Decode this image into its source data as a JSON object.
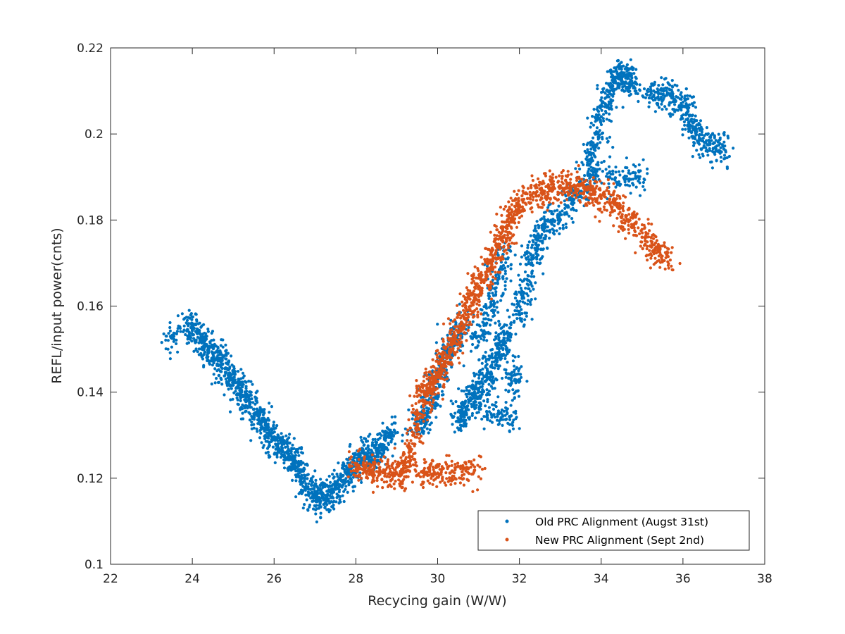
{
  "chart_data": {
    "type": "scatter",
    "xlabel": "Recycing gain (W/W)",
    "ylabel": "REFL/input power(cnts)",
    "xlim": [
      22,
      38
    ],
    "ylim": [
      0.1,
      0.22
    ],
    "x_ticks": [
      "22",
      "24",
      "26",
      "28",
      "30",
      "32",
      "34",
      "36",
      "38"
    ],
    "y_ticks": [
      "0.1",
      "0.12",
      "0.14",
      "0.16",
      "0.18",
      "0.2",
      "0.22"
    ],
    "grid": false,
    "legend_position": "bottom-right",
    "series": [
      {
        "name": "Old PRC Alignment (Augst 31st)",
        "color": "#0072BD",
        "points": [
          [
            23.5,
            0.1525
          ],
          [
            23.9,
            0.1555
          ],
          [
            24.0,
            0.1545
          ],
          [
            24.1,
            0.154
          ],
          [
            24.2,
            0.152
          ],
          [
            24.3,
            0.151
          ],
          [
            24.4,
            0.15
          ],
          [
            24.5,
            0.149
          ],
          [
            24.6,
            0.148
          ],
          [
            24.7,
            0.147
          ],
          [
            24.8,
            0.1455
          ],
          [
            24.9,
            0.144
          ],
          [
            25.0,
            0.1425
          ],
          [
            25.1,
            0.141
          ],
          [
            25.2,
            0.14
          ],
          [
            25.3,
            0.139
          ],
          [
            25.4,
            0.1375
          ],
          [
            25.5,
            0.136
          ],
          [
            25.6,
            0.1345
          ],
          [
            25.7,
            0.133
          ],
          [
            25.8,
            0.1315
          ],
          [
            25.9,
            0.13
          ],
          [
            26.0,
            0.129
          ],
          [
            26.1,
            0.128
          ],
          [
            26.2,
            0.127
          ],
          [
            26.3,
            0.126
          ],
          [
            26.4,
            0.125
          ],
          [
            26.5,
            0.1235
          ],
          [
            26.6,
            0.122
          ],
          [
            26.7,
            0.12
          ],
          [
            26.8,
            0.118
          ],
          [
            26.9,
            0.1165
          ],
          [
            27.0,
            0.116
          ],
          [
            27.1,
            0.1155
          ],
          [
            27.2,
            0.1155
          ],
          [
            27.3,
            0.116
          ],
          [
            27.4,
            0.1165
          ],
          [
            27.5,
            0.1175
          ],
          [
            27.6,
            0.1185
          ],
          [
            27.7,
            0.1195
          ],
          [
            27.8,
            0.121
          ],
          [
            27.9,
            0.1225
          ],
          [
            28.0,
            0.1235
          ],
          [
            28.1,
            0.124
          ],
          [
            28.2,
            0.1245
          ],
          [
            28.3,
            0.125
          ],
          [
            28.4,
            0.1255
          ],
          [
            28.5,
            0.1265
          ],
          [
            28.6,
            0.1275
          ],
          [
            28.7,
            0.129
          ],
          [
            28.8,
            0.1305
          ],
          [
            29.5,
            0.132
          ],
          [
            29.6,
            0.133
          ],
          [
            29.7,
            0.135
          ],
          [
            29.8,
            0.1375
          ],
          [
            29.9,
            0.14
          ],
          [
            30.0,
            0.143
          ],
          [
            30.1,
            0.146
          ],
          [
            30.2,
            0.148
          ],
          [
            30.3,
            0.15
          ],
          [
            30.4,
            0.152
          ],
          [
            30.5,
            0.154
          ],
          [
            30.6,
            0.156
          ],
          [
            30.5,
            0.134
          ],
          [
            30.6,
            0.135
          ],
          [
            30.7,
            0.1365
          ],
          [
            30.8,
            0.138
          ],
          [
            30.9,
            0.1395
          ],
          [
            31.0,
            0.1405
          ],
          [
            31.1,
            0.142
          ],
          [
            31.2,
            0.144
          ],
          [
            31.3,
            0.146
          ],
          [
            31.4,
            0.148
          ],
          [
            31.5,
            0.15
          ],
          [
            31.6,
            0.152
          ],
          [
            31.7,
            0.154
          ],
          [
            31.8,
            0.142
          ],
          [
            31.9,
            0.144
          ],
          [
            31.2,
            0.1355
          ],
          [
            31.5,
            0.135
          ],
          [
            31.8,
            0.1345
          ],
          [
            31.0,
            0.153
          ],
          [
            31.2,
            0.156
          ],
          [
            31.3,
            0.16
          ],
          [
            31.4,
            0.164
          ],
          [
            31.5,
            0.168
          ],
          [
            31.6,
            0.172
          ],
          [
            32.0,
            0.158
          ],
          [
            32.1,
            0.162
          ],
          [
            32.2,
            0.166
          ],
          [
            32.3,
            0.17
          ],
          [
            32.4,
            0.173
          ],
          [
            32.5,
            0.176
          ],
          [
            32.6,
            0.178
          ],
          [
            32.8,
            0.179
          ],
          [
            33.0,
            0.18
          ],
          [
            33.2,
            0.183
          ],
          [
            33.4,
            0.186
          ],
          [
            33.6,
            0.188
          ],
          [
            33.7,
            0.194
          ],
          [
            33.8,
            0.197
          ],
          [
            33.9,
            0.2
          ],
          [
            34.0,
            0.204
          ],
          [
            34.1,
            0.207
          ],
          [
            34.2,
            0.21
          ],
          [
            34.3,
            0.212
          ],
          [
            34.4,
            0.213
          ],
          [
            34.5,
            0.214
          ],
          [
            34.6,
            0.213
          ],
          [
            34.7,
            0.212
          ],
          [
            34.8,
            0.211
          ],
          [
            33.8,
            0.1905
          ],
          [
            34.2,
            0.19
          ],
          [
            34.6,
            0.1895
          ],
          [
            34.9,
            0.19
          ],
          [
            35.2,
            0.209
          ],
          [
            35.4,
            0.2095
          ],
          [
            35.6,
            0.209
          ],
          [
            35.8,
            0.208
          ],
          [
            36.0,
            0.2065
          ],
          [
            36.1,
            0.205
          ],
          [
            36.2,
            0.203
          ],
          [
            36.3,
            0.201
          ],
          [
            36.4,
            0.199
          ],
          [
            36.6,
            0.1975
          ],
          [
            36.8,
            0.197
          ],
          [
            37.0,
            0.1965
          ]
        ]
      },
      {
        "name": "New PRC Alignment (Sept 2nd)",
        "color": "#D95319",
        "points": [
          [
            28.0,
            0.123
          ],
          [
            28.2,
            0.1225
          ],
          [
            28.4,
            0.122
          ],
          [
            28.6,
            0.1215
          ],
          [
            28.8,
            0.121
          ],
          [
            29.0,
            0.121
          ],
          [
            29.1,
            0.1215
          ],
          [
            29.2,
            0.123
          ],
          [
            29.3,
            0.126
          ],
          [
            29.4,
            0.13
          ],
          [
            29.5,
            0.134
          ],
          [
            29.6,
            0.138
          ],
          [
            29.7,
            0.14
          ],
          [
            29.8,
            0.141
          ],
          [
            29.9,
            0.142
          ],
          [
            30.0,
            0.144
          ],
          [
            30.1,
            0.146
          ],
          [
            30.2,
            0.148
          ],
          [
            30.3,
            0.15
          ],
          [
            30.4,
            0.152
          ],
          [
            30.5,
            0.154
          ],
          [
            30.6,
            0.156
          ],
          [
            30.7,
            0.158
          ],
          [
            30.8,
            0.16
          ],
          [
            30.9,
            0.162
          ],
          [
            31.0,
            0.164
          ],
          [
            31.1,
            0.166
          ],
          [
            31.2,
            0.168
          ],
          [
            31.3,
            0.17
          ],
          [
            31.4,
            0.172
          ],
          [
            31.5,
            0.174
          ],
          [
            31.6,
            0.176
          ],
          [
            31.7,
            0.178
          ],
          [
            31.8,
            0.18
          ],
          [
            31.9,
            0.182
          ],
          [
            32.0,
            0.1835
          ],
          [
            32.2,
            0.185
          ],
          [
            32.4,
            0.186
          ],
          [
            32.6,
            0.1865
          ],
          [
            32.8,
            0.1875
          ],
          [
            33.0,
            0.188
          ],
          [
            33.2,
            0.1885
          ],
          [
            33.4,
            0.188
          ],
          [
            33.6,
            0.187
          ],
          [
            33.8,
            0.186
          ],
          [
            34.0,
            0.185
          ],
          [
            34.2,
            0.184
          ],
          [
            34.4,
            0.183
          ],
          [
            34.6,
            0.181
          ],
          [
            34.8,
            0.179
          ],
          [
            35.0,
            0.176
          ],
          [
            35.2,
            0.174
          ],
          [
            35.4,
            0.173
          ],
          [
            35.6,
            0.172
          ],
          [
            29.6,
            0.1215
          ],
          [
            29.8,
            0.1215
          ],
          [
            30.0,
            0.1212
          ],
          [
            30.3,
            0.1212
          ],
          [
            30.6,
            0.1215
          ],
          [
            30.9,
            0.1218
          ]
        ]
      }
    ]
  }
}
